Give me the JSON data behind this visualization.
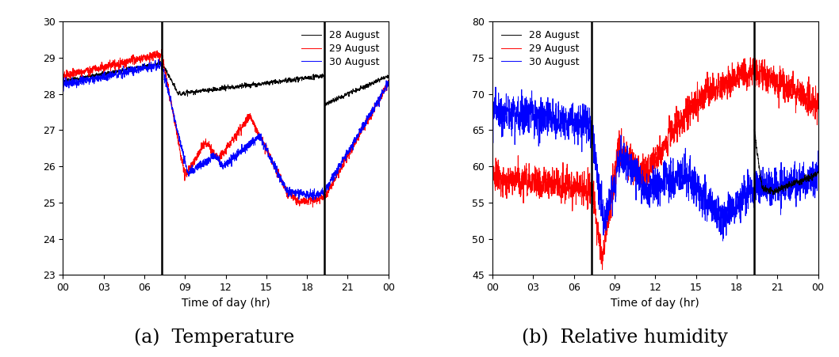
{
  "temp_ylim": [
    23,
    30
  ],
  "temp_yticks": [
    23,
    24,
    25,
    26,
    27,
    28,
    29,
    30
  ],
  "rh_ylim": [
    45,
    80
  ],
  "rh_yticks": [
    45,
    50,
    55,
    60,
    65,
    70,
    75,
    80
  ],
  "xticks": [
    0,
    3,
    6,
    9,
    12,
    15,
    18,
    21,
    24
  ],
  "xticklabels": [
    "00",
    "03",
    "06",
    "09",
    "12",
    "15",
    "18",
    "21",
    "00"
  ],
  "xlabel": "Time of day (hr)",
  "vline1": 7.3,
  "vline2": 19.3,
  "colors": [
    "black",
    "red",
    "blue"
  ],
  "legend_labels": [
    "28 August",
    "29 August",
    "30 August"
  ],
  "caption_a": "(a)  Temperature",
  "caption_b": "(b)  Relative humidity",
  "caption_fontsize": 17
}
